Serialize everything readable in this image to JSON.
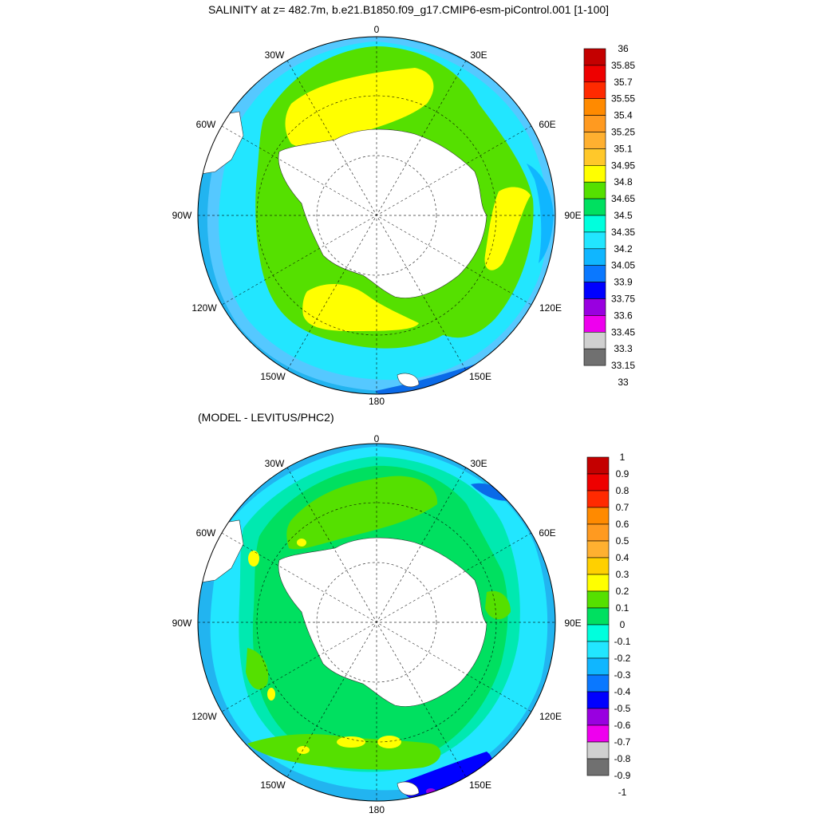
{
  "colors": {
    "land": "#ffffff",
    "ocean_deep": "#22b4f0",
    "coast_blue": "#0a6ae8"
  },
  "top": {
    "title": "SALINITY at z= 482.7m, b.e21.B1850.f09_g17.CMIP6-esm-piControl.001 [1-100]",
    "lon_labels": {
      "l0": "0",
      "l30e": "30E",
      "l60e": "60E",
      "l90e": "90E",
      "l120e": "120E",
      "l150e": "150E",
      "l180": "180",
      "l150w": "150W",
      "l120w": "120W",
      "l90w": "90W",
      "l60w": "60W",
      "l30w": "30W"
    },
    "colorbar": {
      "colors": [
        "#c40000",
        "#ee0000",
        "#ff2a00",
        "#ff8a00",
        "#ff9a20",
        "#ffb030",
        "#ffc82a",
        "#ffff00",
        "#55e000",
        "#00e060",
        "#00ffdd",
        "#22e6ff",
        "#10b6ff",
        "#0a78ff",
        "#0000ff",
        "#9900e0",
        "#ee00ee",
        "#d0d0d0",
        "#707070"
      ],
      "labels": [
        "36",
        "35.85",
        "35.7",
        "35.55",
        "35.4",
        "35.25",
        "35.1",
        "34.95",
        "34.8",
        "34.65",
        "34.5",
        "34.35",
        "34.2",
        "34.05",
        "33.9",
        "33.75",
        "33.6",
        "33.45",
        "33.3",
        "33.15",
        "33"
      ]
    }
  },
  "bottom": {
    "title": "(MODEL - LEVITUS/PHC2)",
    "lon_labels": {
      "l0": "0",
      "l30e": "30E",
      "l60e": "60E",
      "l90e": "90E",
      "l120e": "120E",
      "l150e": "150E",
      "l180": "180",
      "l150w": "150W",
      "l120w": "120W",
      "l90w": "90W",
      "l60w": "60W",
      "l30w": "30W"
    },
    "colorbar": {
      "colors": [
        "#c40000",
        "#ee0000",
        "#ff2a00",
        "#ff8a00",
        "#ff9a20",
        "#ffb030",
        "#ffd000",
        "#ffff00",
        "#55e000",
        "#00e060",
        "#00ffdd",
        "#22e6ff",
        "#10b6ff",
        "#0a78ff",
        "#0000ff",
        "#9900e0",
        "#ee00ee",
        "#d0d0d0",
        "#707070"
      ],
      "labels": [
        "1",
        "0.9",
        "0.8",
        "0.7",
        "0.6",
        "0.5",
        "0.4",
        "0.3",
        "0.2",
        "0.1",
        "0",
        "-0.1",
        "-0.2",
        "-0.3",
        "-0.4",
        "-0.5",
        "-0.6",
        "-0.7",
        "-0.8",
        "-0.9",
        "-1"
      ]
    }
  }
}
